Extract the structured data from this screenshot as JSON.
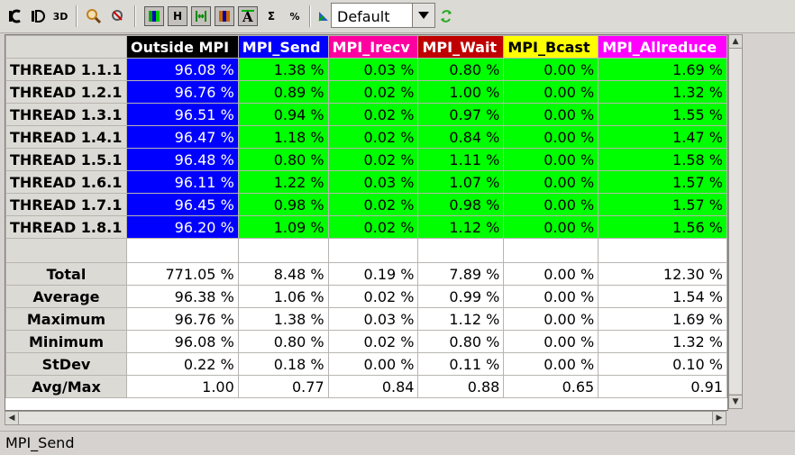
{
  "toolbar": {
    "buttons": [
      {
        "name": "code-view-icon",
        "glyph": "C"
      },
      {
        "name": "data-view-icon",
        "glyph": "D"
      },
      {
        "name": "3d-view-icon",
        "glyph": "3D"
      },
      {
        "name": "search-icon",
        "glyph": "⌕"
      },
      {
        "name": "zoom-icon",
        "glyph": "⌕"
      },
      {
        "name": "gradient-color-icon",
        "glyph": "▮"
      },
      {
        "name": "h-align-icon",
        "glyph": "H"
      },
      {
        "name": "fit-width-icon",
        "glyph": "↔"
      },
      {
        "name": "column-color-icon",
        "glyph": "▮"
      },
      {
        "name": "text-format-icon",
        "glyph": "A"
      },
      {
        "name": "sum-icon",
        "glyph": "Σ"
      },
      {
        "name": "percent-icon",
        "glyph": "%"
      },
      {
        "name": "semantic-icon",
        "glyph": "◣"
      },
      {
        "name": "refresh-icon",
        "glyph": "⟳"
      }
    ],
    "dropdown": {
      "value": "Default",
      "arrow": "▼"
    }
  },
  "table": {
    "columns": [
      {
        "label": "Outside MPI",
        "color": "#000000"
      },
      {
        "label": "MPI_Send",
        "color": "#0000ff"
      },
      {
        "label": "MPI_Irecv",
        "color": "#ff00a0"
      },
      {
        "label": "MPI_Wait",
        "color": "#c00000"
      },
      {
        "label": "MPI_Bcast",
        "color": "#ffff00"
      },
      {
        "label": "MPI_Allreduce",
        "color": "#ff00ff"
      }
    ],
    "rows": [
      {
        "label": "THREAD 1.1.1",
        "cells": [
          "96.08 %",
          "1.38 %",
          "0.03 %",
          "0.80 %",
          "0.00 %",
          "1.69 %"
        ]
      },
      {
        "label": "THREAD 1.2.1",
        "cells": [
          "96.76 %",
          "0.89 %",
          "0.02 %",
          "1.00 %",
          "0.00 %",
          "1.32 %"
        ]
      },
      {
        "label": "THREAD 1.3.1",
        "cells": [
          "96.51 %",
          "0.94 %",
          "0.02 %",
          "0.97 %",
          "0.00 %",
          "1.55 %"
        ]
      },
      {
        "label": "THREAD 1.4.1",
        "cells": [
          "96.47 %",
          "1.18 %",
          "0.02 %",
          "0.84 %",
          "0.00 %",
          "1.47 %"
        ]
      },
      {
        "label": "THREAD 1.5.1",
        "cells": [
          "96.48 %",
          "0.80 %",
          "0.02 %",
          "1.11 %",
          "0.00 %",
          "1.58 %"
        ]
      },
      {
        "label": "THREAD 1.6.1",
        "cells": [
          "96.11 %",
          "1.22 %",
          "0.03 %",
          "1.07 %",
          "0.00 %",
          "1.57 %"
        ]
      },
      {
        "label": "THREAD 1.7.1",
        "cells": [
          "96.45 %",
          "0.98 %",
          "0.02 %",
          "0.98 %",
          "0.00 %",
          "1.57 %"
        ]
      },
      {
        "label": "THREAD 1.8.1",
        "cells": [
          "96.20 %",
          "1.09 %",
          "0.02 %",
          "1.12 %",
          "0.00 %",
          "1.56 %"
        ]
      }
    ],
    "stats": [
      {
        "label": "Total",
        "cells": [
          "771.05 %",
          "8.48 %",
          "0.19 %",
          "7.89 %",
          "0.00 %",
          "12.30 %"
        ]
      },
      {
        "label": "Average",
        "cells": [
          "96.38 %",
          "1.06 %",
          "0.02 %",
          "0.99 %",
          "0.00 %",
          "1.54 %"
        ]
      },
      {
        "label": "Maximum",
        "cells": [
          "96.76 %",
          "1.38 %",
          "0.03 %",
          "1.12 %",
          "0.00 %",
          "1.69 %"
        ]
      },
      {
        "label": "Minimum",
        "cells": [
          "96.08 %",
          "0.80 %",
          "0.02 %",
          "0.80 %",
          "0.00 %",
          "1.32 %"
        ]
      },
      {
        "label": "StDev",
        "cells": [
          "0.22 %",
          "0.18 %",
          "0.00 %",
          "0.11 %",
          "0.00 %",
          "0.10 %"
        ]
      },
      {
        "label": "Avg/Max",
        "cells": [
          "1.00",
          "0.77",
          "0.84",
          "0.88",
          "0.65",
          "0.91"
        ]
      }
    ],
    "colors": {
      "outside_mpi_cell": "#0000ff",
      "mpi_cell": "#00ff00",
      "header_text_dark": "#000000",
      "header_text_light": "#ffffff"
    }
  },
  "status": {
    "text": "MPI_Send"
  }
}
